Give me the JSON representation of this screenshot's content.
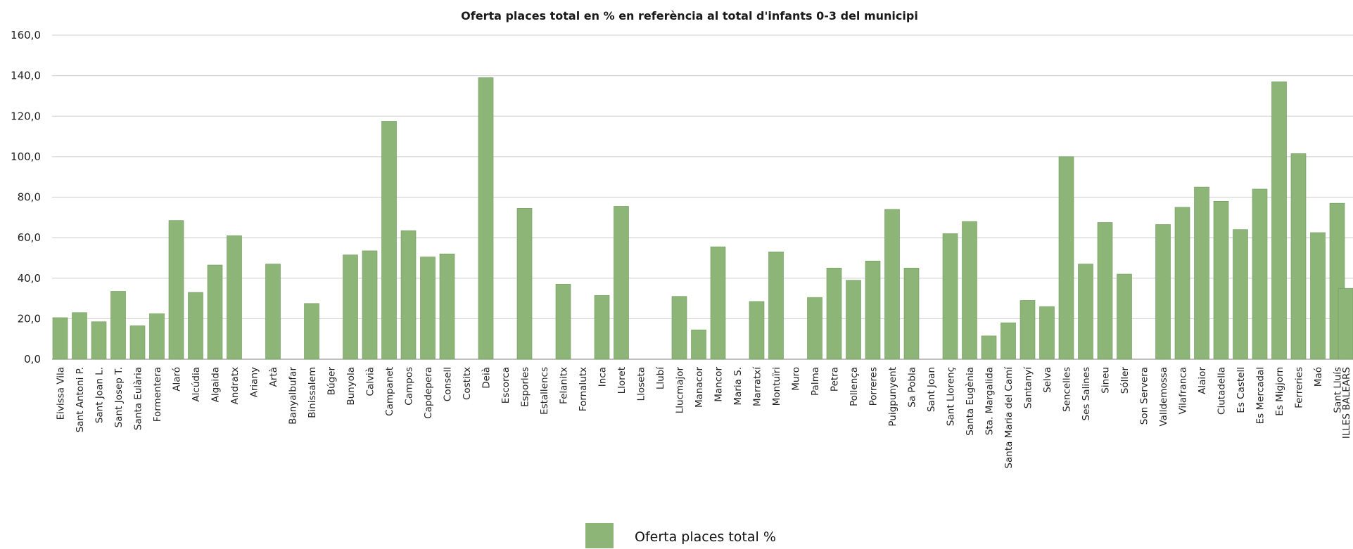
{
  "chart_data": {
    "type": "bar",
    "title": "Oferta  places total en  % en referència al total d'infants 0-3 del municipi",
    "xlabel": "",
    "ylabel": "",
    "ylim": [
      0,
      160
    ],
    "yticks": [
      "0,0",
      "20,0",
      "40,0",
      "60,0",
      "80,0",
      "100,0",
      "120,0",
      "140,0",
      "160,0"
    ],
    "grid": true,
    "legend_position": "bottom-center",
    "color": "#8db577",
    "categories": [
      "Eivissa Vila",
      "Sant Antoni P.",
      "Sant Joan  L.",
      "Sant Josep T.",
      "Santa Eulària",
      "Formentera",
      "Alaró",
      "Alcúdia",
      "Algaida",
      "Andratx",
      "Ariany",
      "Artà",
      "Banyalbufar",
      "Binissalem",
      "Búger",
      "Bunyola",
      "Calvià",
      "Campanet",
      "Campos",
      "Capdepera",
      "Consell",
      "Costitx",
      "Deià",
      "Escorca",
      "Esporles",
      "Estallencs",
      "Felanitx",
      "Fornalutx",
      "Inca",
      "Lloret",
      "Lloseta",
      "Llubí",
      "Llucmajor",
      "Manacor",
      "Mancor",
      "Maria S.",
      "Marratxí",
      "Montuïri",
      "Muro",
      "Palma",
      "Petra",
      "Pollença",
      "Porreres",
      "Puigpunyent",
      "Sa Pobla",
      "Sant Joan",
      "Sant Llorenç",
      "Santa Eugènia",
      "Sta. Margalida",
      "Santa Maria del Camí",
      "Santanyí",
      "Selva",
      "Sencelles",
      "Ses Salines",
      "Sineu",
      "Sóller",
      "Son Servera",
      "Valldemossa",
      "Vilafranca",
      "Alaior",
      "Ciutadella",
      "Es Castell",
      "Es Mercadal",
      "Es Migjorn",
      "Ferreries",
      "Maó",
      "Sant Lluís",
      "ILLES BALEARS"
    ],
    "series": [
      {
        "name": "Oferta places total %",
        "values": [
          20.5,
          23,
          18.5,
          33.5,
          16.5,
          22.5,
          68.5,
          33,
          46.5,
          61,
          0,
          47,
          0,
          27.5,
          0,
          51.5,
          53.5,
          117.5,
          63.5,
          50.5,
          52,
          0,
          139,
          0,
          74.5,
          0,
          37,
          0,
          31.5,
          75.5,
          0,
          0,
          31,
          14.5,
          55.5,
          0,
          28.5,
          53,
          0,
          30.5,
          45,
          39,
          48.5,
          74,
          45,
          0,
          62,
          68,
          11.5,
          18,
          29,
          26,
          100,
          47,
          67.5,
          42,
          0,
          66.5,
          75,
          85,
          78,
          64,
          84,
          137,
          101.5,
          62.5,
          77,
          35
        ]
      }
    ]
  }
}
